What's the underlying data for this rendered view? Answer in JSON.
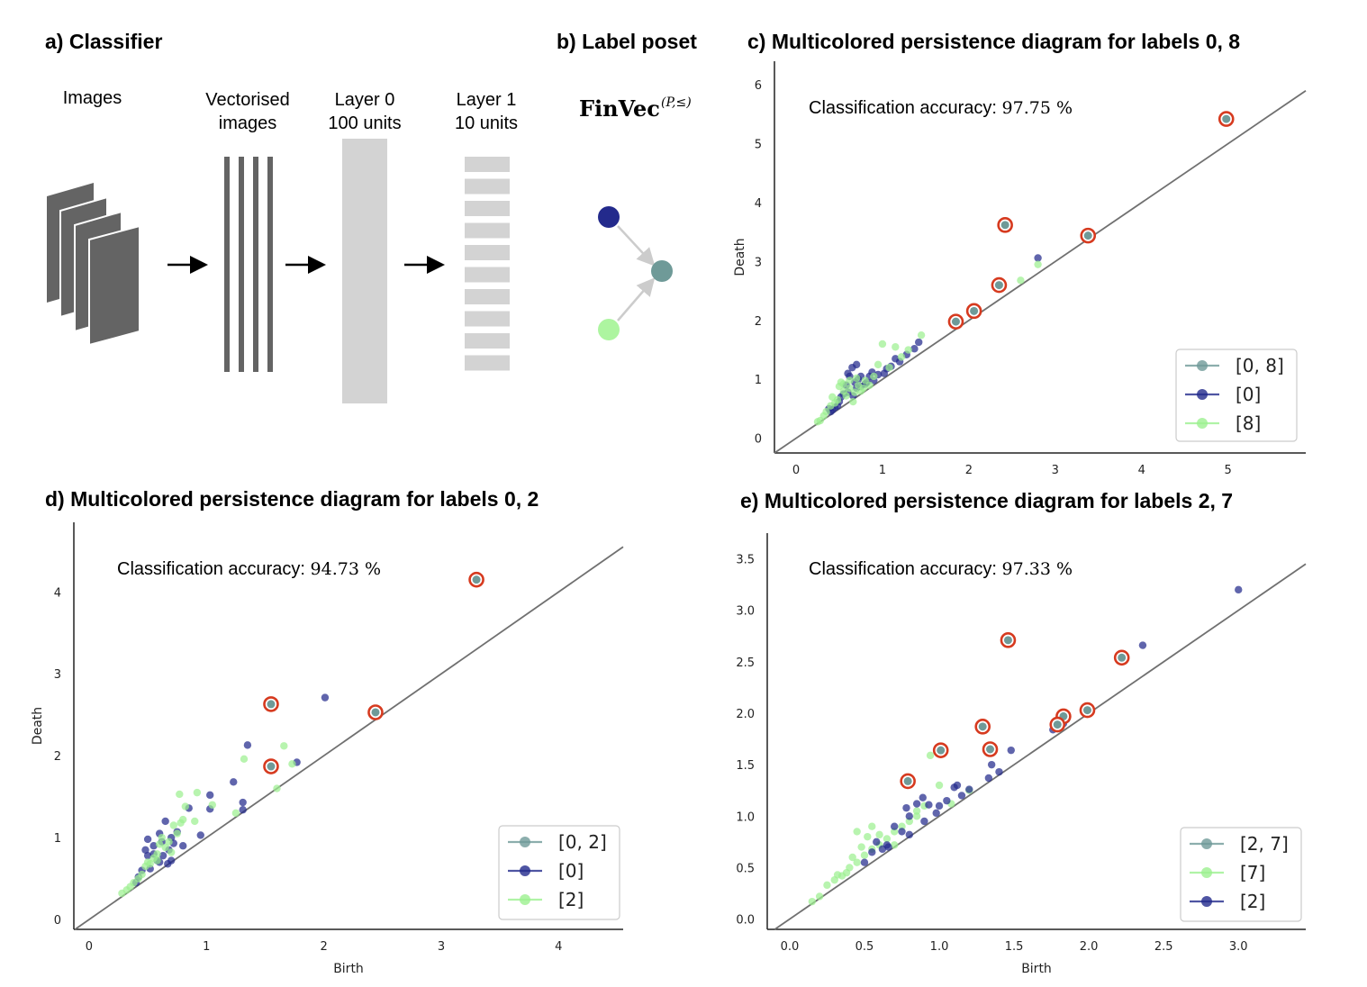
{
  "panel_a": {
    "title": "a) Classifier",
    "images_label": "Images",
    "vectorised_label": [
      "Vectorised",
      "images"
    ],
    "layer0_label": [
      "Layer 0",
      "100 units"
    ],
    "layer1_label": [
      "Layer 1",
      "10 units"
    ]
  },
  "panel_b": {
    "title": "b) Label poset",
    "finvec_main": "FinVec",
    "finvec_sup": "(P,≤)",
    "colors": {
      "top": "#232a8c",
      "bottom": "#adf5a0",
      "join": "#6f9a98",
      "arrow": "#cccccc"
    }
  },
  "colors": {
    "joint": "#6f9a98",
    "blue": "#232a8c",
    "green": "#9cf090",
    "ring": "#d63a1f",
    "diag": "#707070"
  },
  "chart_data": [
    {
      "id": "c",
      "type": "scatter",
      "title": "c) Multicolored persistence diagram for labels 0, 8",
      "xlabel": "",
      "ylabel": "Death",
      "xlim": [
        -0.25,
        5.9
      ],
      "ylim": [
        -0.25,
        6.4
      ],
      "xticks": [
        "0",
        "1",
        "2",
        "3",
        "4",
        "5"
      ],
      "xtick_values": [
        0,
        1,
        2,
        3,
        4,
        5
      ],
      "yticks": [
        "0",
        "1",
        "2",
        "3",
        "4",
        "5",
        "6"
      ],
      "ytick_values": [
        0,
        1,
        2,
        3,
        4,
        5,
        6
      ],
      "accuracy_label": "Classification accuracy:",
      "accuracy_value": "97.75 %",
      "legend_position": "bottom-right",
      "series": [
        {
          "name": "[0, 8]",
          "color_key": "joint",
          "ringed": true,
          "points": [
            [
              4.98,
              5.42
            ],
            [
              2.42,
              3.62
            ],
            [
              3.38,
              3.44
            ],
            [
              2.35,
              2.6
            ],
            [
              2.06,
              2.16
            ],
            [
              1.85,
              1.98
            ]
          ]
        },
        {
          "name": "[0]",
          "color_key": "blue",
          "ringed": false,
          "points": [
            [
              2.8,
              3.06
            ],
            [
              1.42,
              1.63
            ],
            [
              1.37,
              1.52
            ],
            [
              1.28,
              1.42
            ],
            [
              1.2,
              1.3
            ],
            [
              1.1,
              1.22
            ],
            [
              1.02,
              1.1
            ],
            [
              0.95,
              1.08
            ],
            [
              0.9,
              0.98
            ],
            [
              0.85,
              1.05
            ],
            [
              0.8,
              0.92
            ],
            [
              0.75,
              0.88
            ],
            [
              0.7,
              0.85
            ],
            [
              0.68,
              0.95
            ],
            [
              0.65,
              1.2
            ],
            [
              0.62,
              1.05
            ],
            [
              0.6,
              0.78
            ],
            [
              0.58,
              0.9
            ],
            [
              0.55,
              0.75
            ],
            [
              0.52,
              0.7
            ],
            [
              0.5,
              0.62
            ],
            [
              0.48,
              0.55
            ],
            [
              0.45,
              0.52
            ],
            [
              0.42,
              0.48
            ],
            [
              0.4,
              0.45
            ],
            [
              0.38,
              0.5
            ],
            [
              0.6,
              1.1
            ],
            [
              0.7,
              1.25
            ],
            [
              0.75,
              1.05
            ],
            [
              0.82,
              0.95
            ],
            [
              0.88,
              1.12
            ],
            [
              0.72,
              1.0
            ],
            [
              0.66,
              0.72
            ],
            [
              1.15,
              1.35
            ],
            [
              1.05,
              1.18
            ]
          ]
        },
        {
          "name": "[8]",
          "color_key": "green",
          "ringed": false,
          "points": [
            [
              2.8,
              2.95
            ],
            [
              2.6,
              2.68
            ],
            [
              1.45,
              1.75
            ],
            [
              1.3,
              1.5
            ],
            [
              1.15,
              1.55
            ],
            [
              1.0,
              1.6
            ],
            [
              1.08,
              1.2
            ],
            [
              0.95,
              1.25
            ],
            [
              0.9,
              1.05
            ],
            [
              0.85,
              0.9
            ],
            [
              0.78,
              0.85
            ],
            [
              0.72,
              0.9
            ],
            [
              0.68,
              0.78
            ],
            [
              0.62,
              0.85
            ],
            [
              0.58,
              0.72
            ],
            [
              0.55,
              0.8
            ],
            [
              0.52,
              0.95
            ],
            [
              0.5,
              0.88
            ],
            [
              0.48,
              0.65
            ],
            [
              0.45,
              0.6
            ],
            [
              0.42,
              0.7
            ],
            [
              0.4,
              0.55
            ],
            [
              0.35,
              0.45
            ],
            [
              0.32,
              0.38
            ],
            [
              0.28,
              0.3
            ],
            [
              0.25,
              0.28
            ],
            [
              0.55,
              0.92
            ],
            [
              0.62,
              0.98
            ],
            [
              0.66,
              0.62
            ],
            [
              0.7,
              1.02
            ],
            [
              0.8,
              0.98
            ],
            [
              1.22,
              1.38
            ],
            [
              0.75,
              0.8
            ]
          ]
        }
      ]
    },
    {
      "id": "d",
      "type": "scatter",
      "title": "d) Multicolored persistence diagram for labels 0, 2",
      "xlabel": "Birth",
      "ylabel": "Death",
      "xlim": [
        -0.13,
        4.55
      ],
      "ylim": [
        -0.12,
        4.85
      ],
      "xticks": [
        "0",
        "1",
        "2",
        "3",
        "4"
      ],
      "xtick_values": [
        0,
        1,
        2,
        3,
        4
      ],
      "yticks": [
        "0",
        "1",
        "2",
        "3",
        "4"
      ],
      "ytick_values": [
        0,
        1,
        2,
        3,
        4
      ],
      "accuracy_label": "Classification accuracy:",
      "accuracy_value": "94.73 %",
      "legend_position": "bottom-right",
      "series": [
        {
          "name": "[0, 2]",
          "color_key": "joint",
          "ringed": true,
          "points": [
            [
              3.3,
              4.15
            ],
            [
              1.55,
              2.63
            ],
            [
              2.44,
              2.53
            ],
            [
              1.55,
              1.87
            ]
          ]
        },
        {
          "name": "[0]",
          "color_key": "blue",
          "ringed": false,
          "points": [
            [
              2.01,
              2.71
            ],
            [
              1.35,
              2.13
            ],
            [
              1.77,
              1.92
            ],
            [
              1.31,
              1.43
            ],
            [
              1.31,
              1.34
            ],
            [
              1.23,
              1.68
            ],
            [
              1.03,
              1.52
            ],
            [
              1.03,
              1.35
            ],
            [
              0.95,
              1.03
            ],
            [
              0.85,
              1.36
            ],
            [
              0.75,
              1.07
            ],
            [
              0.72,
              0.93
            ],
            [
              0.7,
              1.0
            ],
            [
              0.68,
              0.85
            ],
            [
              0.65,
              1.2
            ],
            [
              0.63,
              0.78
            ],
            [
              0.6,
              1.05
            ],
            [
              0.58,
              0.72
            ],
            [
              0.55,
              0.9
            ],
            [
              0.52,
              0.62
            ],
            [
              0.5,
              0.98
            ],
            [
              0.5,
              0.78
            ],
            [
              0.48,
              0.85
            ],
            [
              0.45,
              0.6
            ],
            [
              0.42,
              0.52
            ],
            [
              0.4,
              0.45
            ],
            [
              0.6,
              0.7
            ],
            [
              0.62,
              0.95
            ],
            [
              0.55,
              0.8
            ],
            [
              0.8,
              0.9
            ],
            [
              0.7,
              0.72
            ],
            [
              0.67,
              0.68
            ]
          ]
        },
        {
          "name": "[2]",
          "color_key": "green",
          "ringed": false,
          "points": [
            [
              1.66,
              2.12
            ],
            [
              1.32,
              1.96
            ],
            [
              1.73,
              1.9
            ],
            [
              1.6,
              1.6
            ],
            [
              0.92,
              1.55
            ],
            [
              0.77,
              1.53
            ],
            [
              0.82,
              1.38
            ],
            [
              1.05,
              1.4
            ],
            [
              1.25,
              1.3
            ],
            [
              0.8,
              1.22
            ],
            [
              0.78,
              1.18
            ],
            [
              0.75,
              1.05
            ],
            [
              0.72,
              1.15
            ],
            [
              0.68,
              0.95
            ],
            [
              0.65,
              0.88
            ],
            [
              0.6,
              0.92
            ],
            [
              0.58,
              0.8
            ],
            [
              0.55,
              0.75
            ],
            [
              0.52,
              0.68
            ],
            [
              0.48,
              0.65
            ],
            [
              0.45,
              0.55
            ],
            [
              0.42,
              0.5
            ],
            [
              0.38,
              0.45
            ],
            [
              0.35,
              0.4
            ],
            [
              0.32,
              0.36
            ],
            [
              0.28,
              0.32
            ],
            [
              0.62,
              1.0
            ],
            [
              0.58,
              0.72
            ],
            [
              0.7,
              0.82
            ],
            [
              0.9,
              1.2
            ],
            [
              0.5,
              0.7
            ]
          ]
        }
      ]
    },
    {
      "id": "e",
      "type": "scatter",
      "title": "e) Multicolored persistence diagram for labels 2, 7",
      "xlabel": "Birth",
      "ylabel": "Death",
      "xlim": [
        -0.15,
        3.45
      ],
      "ylim": [
        -0.1,
        3.75
      ],
      "xticks": [
        "0.0",
        "0.5",
        "1.0",
        "1.5",
        "2.0",
        "2.5",
        "3.0"
      ],
      "xtick_values": [
        0,
        0.5,
        1,
        1.5,
        2,
        2.5,
        3
      ],
      "yticks": [
        "0.0",
        "0.5",
        "1.0",
        "1.5",
        "2.0",
        "2.5",
        "3.0",
        "3.5"
      ],
      "ytick_values": [
        0,
        0.5,
        1,
        1.5,
        2,
        2.5,
        3,
        3.5
      ],
      "accuracy_label": "Classification accuracy:",
      "accuracy_value": "97.33 %",
      "legend_position": "bottom-right",
      "series": [
        {
          "name": "[2, 7]",
          "color_key": "joint",
          "ringed": true,
          "points": [
            [
              1.46,
              2.71
            ],
            [
              2.22,
              2.54
            ],
            [
              1.99,
              2.03
            ],
            [
              1.83,
              1.97
            ],
            [
              1.79,
              1.89
            ],
            [
              1.29,
              1.87
            ],
            [
              1.01,
              1.64
            ],
            [
              1.34,
              1.65
            ],
            [
              0.79,
              1.34
            ]
          ]
        },
        {
          "name": "[7]",
          "color_key": "green",
          "ringed": false,
          "points": [
            [
              0.94,
              1.59
            ],
            [
              1.0,
              1.3
            ],
            [
              0.9,
              1.1
            ],
            [
              0.85,
              1.0
            ],
            [
              0.8,
              0.95
            ],
            [
              0.75,
              0.9
            ],
            [
              0.7,
              0.85
            ],
            [
              0.65,
              0.78
            ],
            [
              0.6,
              0.72
            ],
            [
              0.55,
              0.68
            ],
            [
              0.52,
              0.8
            ],
            [
              0.5,
              0.62
            ],
            [
              0.48,
              0.7
            ],
            [
              0.45,
              0.55
            ],
            [
              0.42,
              0.6
            ],
            [
              0.4,
              0.5
            ],
            [
              0.38,
              0.45
            ],
            [
              0.35,
              0.42
            ],
            [
              0.32,
              0.43
            ],
            [
              0.3,
              0.38
            ],
            [
              0.25,
              0.33
            ],
            [
              0.2,
              0.22
            ],
            [
              0.15,
              0.17
            ],
            [
              0.45,
              0.85
            ],
            [
              0.55,
              0.9
            ],
            [
              0.6,
              0.82
            ],
            [
              1.08,
              1.12
            ],
            [
              1.2,
              1.25
            ],
            [
              0.7,
              0.72
            ],
            [
              0.85,
              1.05
            ]
          ]
        },
        {
          "name": "[2]",
          "color_key": "blue",
          "ringed": false,
          "points": [
            [
              3.0,
              3.2
            ],
            [
              2.36,
              2.66
            ],
            [
              1.85,
              1.94
            ],
            [
              1.83,
              1.9
            ],
            [
              1.76,
              1.84
            ],
            [
              1.48,
              1.64
            ],
            [
              1.4,
              1.43
            ],
            [
              1.35,
              1.5
            ],
            [
              1.33,
              1.37
            ],
            [
              1.2,
              1.26
            ],
            [
              1.15,
              1.2
            ],
            [
              1.12,
              1.3
            ],
            [
              1.1,
              1.28
            ],
            [
              1.05,
              1.15
            ],
            [
              1.0,
              1.1
            ],
            [
              0.98,
              1.03
            ],
            [
              0.93,
              1.11
            ],
            [
              0.89,
              1.18
            ],
            [
              0.85,
              1.12
            ],
            [
              0.8,
              1.0
            ],
            [
              0.75,
              0.85
            ],
            [
              0.7,
              0.9
            ],
            [
              0.65,
              0.72
            ],
            [
              0.62,
              0.68
            ],
            [
              0.58,
              0.75
            ],
            [
              0.55,
              0.65
            ],
            [
              0.5,
              0.55
            ],
            [
              0.78,
              1.08
            ],
            [
              0.8,
              0.82
            ],
            [
              0.9,
              0.95
            ],
            [
              0.66,
              0.7
            ]
          ]
        }
      ]
    }
  ]
}
